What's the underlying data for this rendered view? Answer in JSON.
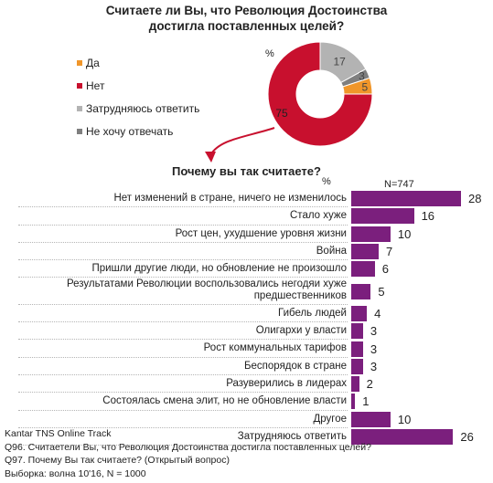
{
  "chart_data": [
    {
      "type": "pie",
      "title": [
        "Считаете ли Вы, что Революция  Достоинства",
        "достигла поставленных целей?"
      ],
      "unit_label": "%",
      "slices": [
        {
          "label": "Да",
          "value": 5,
          "color": "#f0962a"
        },
        {
          "label": "Нет",
          "value": 75,
          "color": "#c8102e"
        },
        {
          "label": "Затрудняюсь ответить",
          "value": 17,
          "color": "#b3b3b3"
        },
        {
          "label": "Не хочу отвечать",
          "value": 3,
          "color": "#7f7f7f"
        }
      ]
    },
    {
      "type": "bar",
      "title": "Почему вы так считаете?",
      "unit_label": "%",
      "n_label": "N=747",
      "color": "#7b1f7d",
      "categories": [
        [
          "Нет изменений в стране, ничего не изменилось"
        ],
        [
          "Стало хуже"
        ],
        [
          "Рост цен, ухудшение уровня жизни"
        ],
        [
          "Война"
        ],
        [
          "Пришли другие люди, но обновление не произошло"
        ],
        [
          "Результатами Революции воспользовались негодяи хуже",
          "предшественников"
        ],
        [
          "Гибель людей"
        ],
        [
          "Олигархи у власти"
        ],
        [
          "Рост коммунальных тарифов"
        ],
        [
          "Беспорядок в стране"
        ],
        [
          "Разуверились в лидерах"
        ],
        [
          "Состоялась смена элит, но не обновление власти"
        ],
        [
          "Другое"
        ],
        [
          "Затрудняюсь ответить"
        ]
      ],
      "values": [
        28,
        16,
        10,
        7,
        6,
        5,
        4,
        3,
        3,
        3,
        2,
        1,
        10,
        26
      ],
      "xlim": [
        0,
        30
      ]
    }
  ],
  "footer": {
    "source": "Kantar TNS Online Track",
    "q96": "Q96. Считаетели Вы, что Революция Достоинства достигла поставленных целей?",
    "q97": "Q97. Почему Вы так считаете? (Открытый вопрос)",
    "sample": "Выборка: волна 10'16, N = 1000"
  }
}
